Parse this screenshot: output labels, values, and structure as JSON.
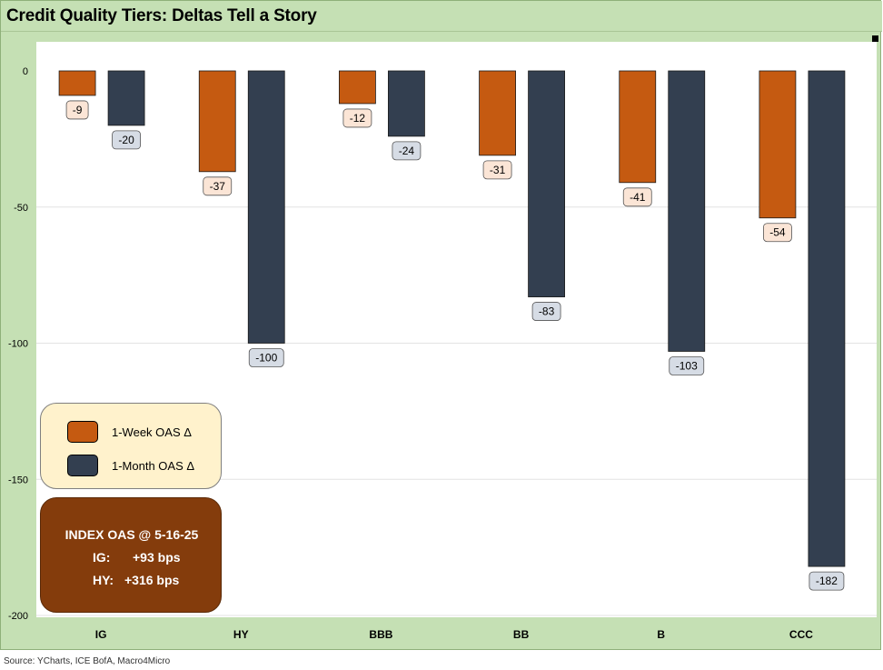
{
  "title": "Credit Quality Tiers: Deltas Tell a Story",
  "source": "Source: YCharts, ICE BofA, Macro4Micro",
  "legend": {
    "items": [
      {
        "label": "1-Week OAS Δ",
        "color": "#c55a11"
      },
      {
        "label": "1-Month OAS Δ",
        "color": "#333f50"
      }
    ]
  },
  "index_box": {
    "title": "INDEX OAS @ 5-16-25",
    "rows": [
      {
        "label": "IG:",
        "value": "+93 bps"
      },
      {
        "label": "HY:",
        "value": "+316 bps"
      }
    ]
  },
  "colors": {
    "week": "#c55a11",
    "month": "#333f50",
    "week_label_bg": "#fbe5d6",
    "month_label_bg": "#d6dce5",
    "background": "#c5e0b4"
  },
  "chart_data": {
    "type": "bar",
    "categories": [
      "IG",
      "HY",
      "BBB",
      "BB",
      "B",
      "CCC"
    ],
    "series": [
      {
        "name": "1-Week OAS Δ",
        "values": [
          -9,
          -37,
          -12,
          -31,
          -41,
          -54
        ]
      },
      {
        "name": "1-Month OAS Δ",
        "values": [
          -20,
          -100,
          -24,
          -83,
          -103,
          -182
        ]
      }
    ],
    "y_ticks": [
      "0",
      "-50",
      "-100",
      "-150",
      "-200"
    ],
    "ylim": [
      -200,
      0
    ],
    "grid": true
  }
}
